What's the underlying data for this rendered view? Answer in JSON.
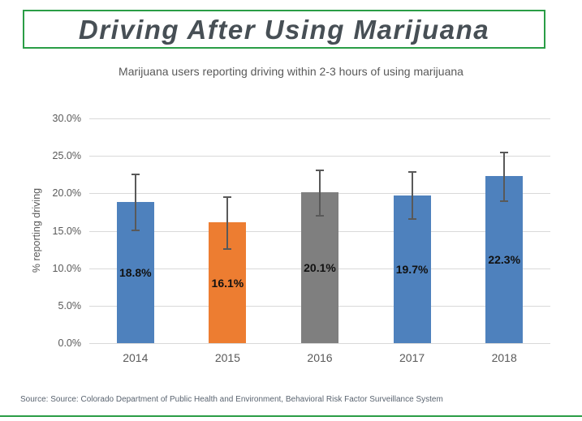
{
  "title": "Driving After Using Marijuana",
  "subtitle": "Marijuana users reporting driving within 2-3 hours of using marijuana",
  "source": "Source: Source: Colorado Department of Public Health and Environment, Behavioral Risk Factor Surveillance System",
  "colors": {
    "accent_green": "#2a9d46",
    "bar_blue": "#4e81bd",
    "bar_orange": "#ed7d31",
    "bar_gray": "#7f7f7f",
    "error_bar": "#595959",
    "gridline": "#d9d9d9",
    "axis_text": "#595959",
    "title_text": "#474f55"
  },
  "chart_data": {
    "type": "bar",
    "categories": [
      "2014",
      "2015",
      "2016",
      "2017",
      "2018"
    ],
    "values": [
      18.8,
      16.1,
      20.1,
      19.7,
      22.3
    ],
    "value_labels": [
      "18.8%",
      "16.1%",
      "20.1%",
      "19.7%",
      "22.3%"
    ],
    "bar_colors": [
      "#4e81bd",
      "#ed7d31",
      "#7f7f7f",
      "#4e81bd",
      "#4e81bd"
    ],
    "error_low": [
      15.1,
      12.6,
      17.0,
      16.6,
      19.0
    ],
    "error_high": [
      22.5,
      19.5,
      23.1,
      22.8,
      25.5
    ],
    "title": "Driving After Using Marijuana",
    "xlabel": "",
    "ylabel": "% reporting driving",
    "ylim": [
      0,
      30
    ],
    "ytick_step": 5,
    "ytick_labels": [
      "0.0%",
      "5.0%",
      "10.0%",
      "15.0%",
      "20.0%",
      "25.0%",
      "30.0%"
    ],
    "grid": true,
    "legend": "none"
  }
}
